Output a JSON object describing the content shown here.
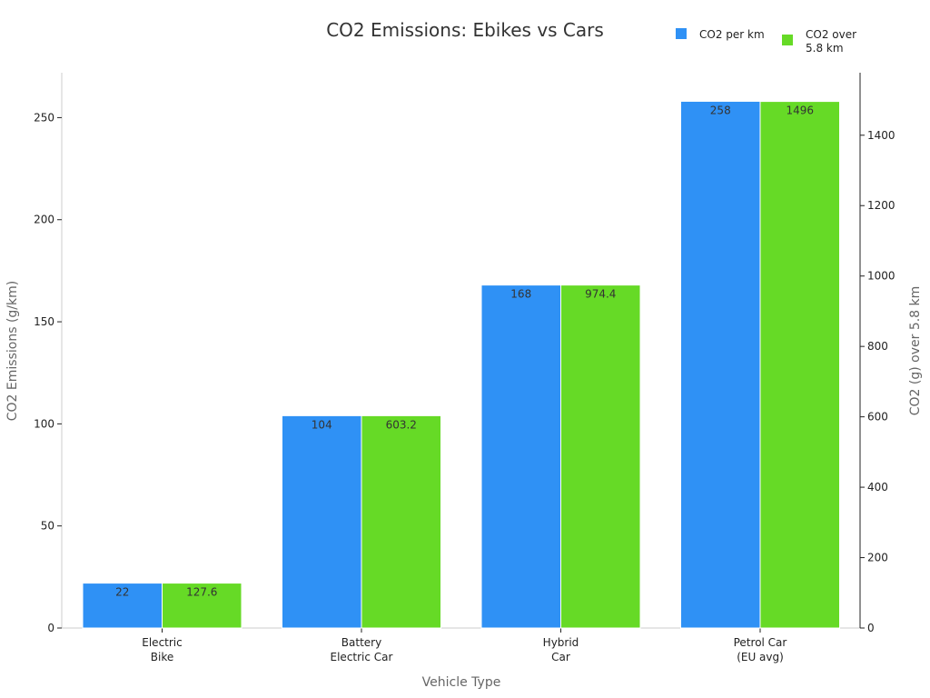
{
  "chart_data": {
    "type": "bar",
    "title": "CO2 Emissions: Ebikes vs Cars",
    "xlabel": "Vehicle Type",
    "ylabel": "CO2 Emissions (g/km)",
    "y2label": "CO2 (g) over 5.8 km",
    "categories": [
      [
        "Electric",
        "Bike"
      ],
      [
        "Battery",
        "Electric Car"
      ],
      [
        "Hybrid",
        "Car"
      ],
      [
        "Petrol Car",
        "(EU avg)"
      ]
    ],
    "series": [
      {
        "name": "CO2 per km",
        "axis": "left",
        "color": "#2f91f5",
        "values": [
          22,
          104,
          168,
          258
        ],
        "labels": [
          "22",
          "104",
          "168",
          "258"
        ]
      },
      {
        "name": "CO2 over 5.8 km",
        "axis": "right",
        "color": "#66da26",
        "values": [
          127.6,
          603.2,
          974.4,
          1496
        ],
        "labels": [
          "127.6",
          "603.2",
          "974.4",
          "1496"
        ]
      }
    ],
    "legend": {
      "position": "top-right",
      "entries": [
        {
          "lines": [
            "CO2 per km"
          ],
          "color": "#2f91f5"
        },
        {
          "lines": [
            "CO2 over",
            "5.8 km"
          ],
          "color": "#66da26"
        }
      ]
    },
    "ylim": [
      0,
      272
    ],
    "yticks": [
      0,
      50,
      100,
      150,
      200,
      250
    ],
    "y2lim": [
      0,
      1577.6
    ],
    "y2ticks": [
      0,
      200,
      400,
      600,
      800,
      1000,
      1200,
      1400
    ],
    "grid": false
  }
}
